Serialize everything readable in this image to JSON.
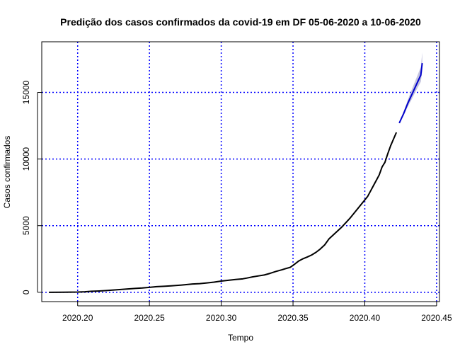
{
  "chart_data": {
    "type": "line",
    "title": "Predição dos casos confirmados da covid-19 em DF 05-06-2020 a 10-06-2020",
    "xlabel": "Tempo",
    "ylabel": "Casos confirmados",
    "xlim": [
      2020.175,
      2020.452
    ],
    "ylim": [
      -700,
      18800
    ],
    "x_ticks": [
      2020.2,
      2020.25,
      2020.3,
      2020.35,
      2020.4,
      2020.45
    ],
    "x_tick_labels": [
      "2020.20",
      "2020.25",
      "2020.30",
      "2020.35",
      "2020.40",
      "2020.45"
    ],
    "y_ticks": [
      0,
      5000,
      10000,
      15000
    ],
    "y_tick_labels": [
      "0",
      "5000",
      "10000",
      "15000"
    ],
    "grid": true,
    "colors": {
      "observed": "#000000",
      "forecast": "#0000cc",
      "band": "#b8b8d8",
      "grid": "#0000ff"
    },
    "series": [
      {
        "values": [
          [
            2020.18,
            0
          ],
          [
            2020.19,
            5
          ],
          [
            2020.2,
            20
          ],
          [
            2020.205,
            40
          ],
          [
            2020.21,
            80
          ],
          [
            2020.215,
            100
          ],
          [
            2020.22,
            130
          ],
          [
            2020.225,
            170
          ],
          [
            2020.23,
            210
          ],
          [
            2020.235,
            250
          ],
          [
            2020.24,
            290
          ],
          [
            2020.245,
            320
          ],
          [
            2020.25,
            370
          ],
          [
            2020.255,
            420
          ],
          [
            2020.26,
            450
          ],
          [
            2020.265,
            480
          ],
          [
            2020.27,
            520
          ],
          [
            2020.275,
            570
          ],
          [
            2020.28,
            620
          ],
          [
            2020.285,
            650
          ],
          [
            2020.29,
            700
          ],
          [
            2020.295,
            760
          ],
          [
            2020.3,
            840
          ],
          [
            2020.305,
            900
          ],
          [
            2020.31,
            960
          ],
          [
            2020.315,
            1010
          ],
          [
            2020.318,
            1070
          ],
          [
            2020.322,
            1160
          ],
          [
            2020.326,
            1230
          ],
          [
            2020.33,
            1300
          ],
          [
            2020.334,
            1420
          ],
          [
            2020.338,
            1560
          ],
          [
            2020.342,
            1680
          ],
          [
            2020.345,
            1780
          ],
          [
            2020.348,
            1870
          ],
          [
            2020.351,
            2100
          ],
          [
            2020.354,
            2350
          ],
          [
            2020.357,
            2520
          ],
          [
            2020.36,
            2650
          ],
          [
            2020.363,
            2800
          ],
          [
            2020.366,
            3000
          ],
          [
            2020.369,
            3250
          ],
          [
            2020.372,
            3550
          ],
          [
            2020.375,
            4000
          ],
          [
            2020.378,
            4300
          ],
          [
            2020.381,
            4600
          ],
          [
            2020.384,
            4900
          ],
          [
            2020.387,
            5250
          ],
          [
            2020.39,
            5600
          ],
          [
            2020.393,
            6000
          ],
          [
            2020.396,
            6400
          ],
          [
            2020.399,
            6800
          ],
          [
            2020.402,
            7200
          ],
          [
            2020.404,
            7600
          ],
          [
            2020.406,
            8000
          ],
          [
            2020.408,
            8400
          ],
          [
            2020.41,
            8800
          ],
          [
            2020.412,
            9400
          ],
          [
            2020.414,
            9750
          ],
          [
            2020.416,
            10400
          ],
          [
            2020.418,
            11000
          ],
          [
            2020.42,
            11500
          ],
          [
            2020.422,
            12000
          ]
        ]
      },
      {
        "values": [
          [
            2020.424,
            12700
          ],
          [
            2020.427,
            13400
          ],
          [
            2020.43,
            14200
          ],
          [
            2020.433,
            14900
          ],
          [
            2020.436,
            15600
          ],
          [
            2020.439,
            16300
          ],
          [
            2020.44,
            17200
          ]
        ],
        "lower": [
          12700,
          13250,
          13950,
          14550,
          15200,
          15800,
          16600
        ],
        "upper": [
          12750,
          13550,
          14450,
          15300,
          16100,
          16900,
          18000
        ]
      }
    ]
  }
}
